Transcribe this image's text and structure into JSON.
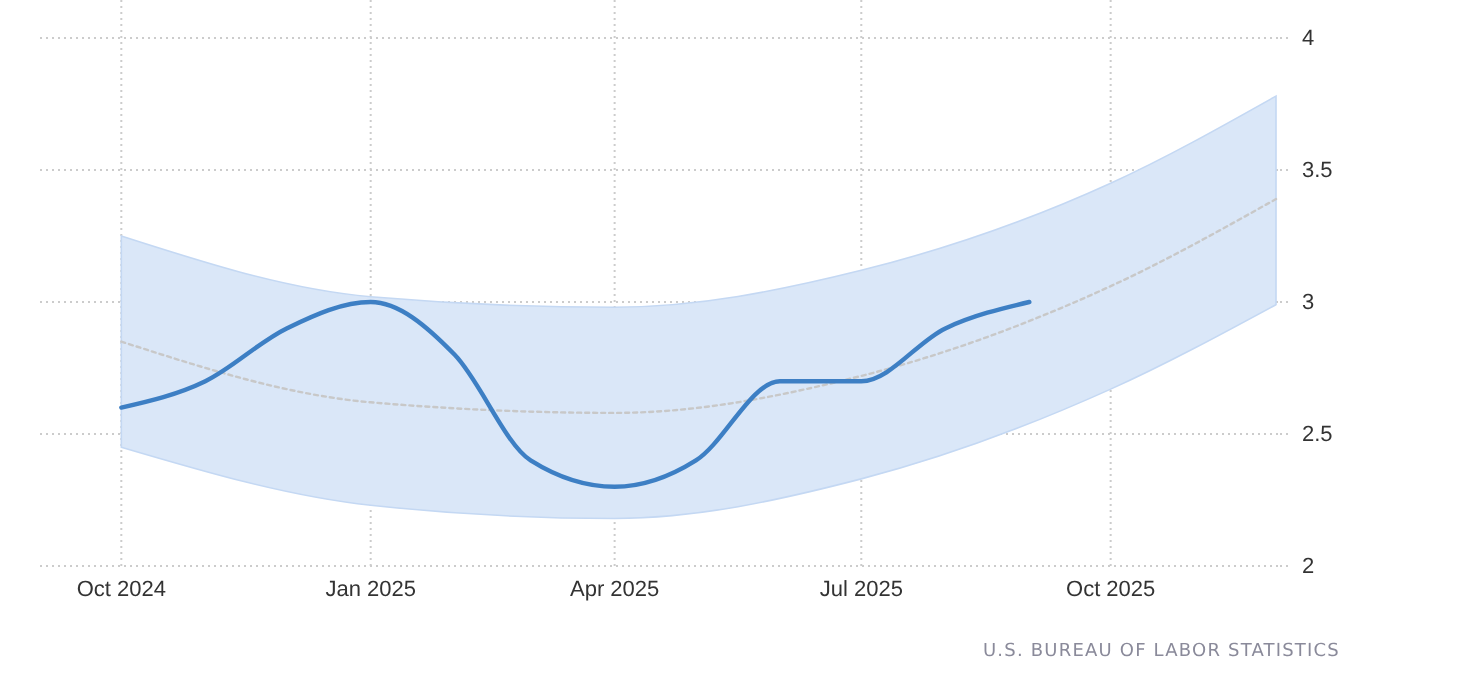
{
  "chart_data": {
    "type": "line",
    "xlim": [
      "2024-09",
      "2025-12"
    ],
    "ylim": [
      2,
      4
    ],
    "xticks": [
      {
        "value": "2024-10",
        "label": "Oct 2024"
      },
      {
        "value": "2025-01",
        "label": "Jan 2025"
      },
      {
        "value": "2025-04",
        "label": "Apr 2025"
      },
      {
        "value": "2025-07",
        "label": "Jul 2025"
      },
      {
        "value": "2025-10",
        "label": "Oct 2025"
      }
    ],
    "yticks": [
      2,
      2.5,
      3,
      3.5,
      4
    ],
    "grid": true,
    "marker": "none",
    "line_style": "solid",
    "series": [
      {
        "color": "#c8c8c8",
        "line_style": "dotted",
        "x": [
          "2024-10",
          "2025-01",
          "2025-04",
          "2025-07",
          "2025-10",
          "2025-12"
        ],
        "values": [
          2.85,
          2.62,
          2.58,
          2.72,
          3.06,
          3.39
        ],
        "lower": [
          2.45,
          2.23,
          2.18,
          2.33,
          2.67,
          2.99
        ],
        "upper": [
          3.25,
          3.02,
          2.98,
          3.12,
          3.45,
          3.78
        ]
      },
      {
        "color": "#3d7fc4",
        "x": [
          "2024-10",
          "2024-11",
          "2024-12",
          "2025-01",
          "2025-02",
          "2025-03",
          "2025-04",
          "2025-05",
          "2025-06",
          "2025-07",
          "2025-08",
          "2025-09"
        ],
        "values": [
          2.6,
          2.7,
          2.9,
          3.0,
          2.8,
          2.4,
          2.3,
          2.4,
          2.7,
          2.7,
          2.9,
          3.0
        ]
      }
    ],
    "annotations": [
      "U.S. BUREAU OF LABOR STATISTICS"
    ]
  }
}
